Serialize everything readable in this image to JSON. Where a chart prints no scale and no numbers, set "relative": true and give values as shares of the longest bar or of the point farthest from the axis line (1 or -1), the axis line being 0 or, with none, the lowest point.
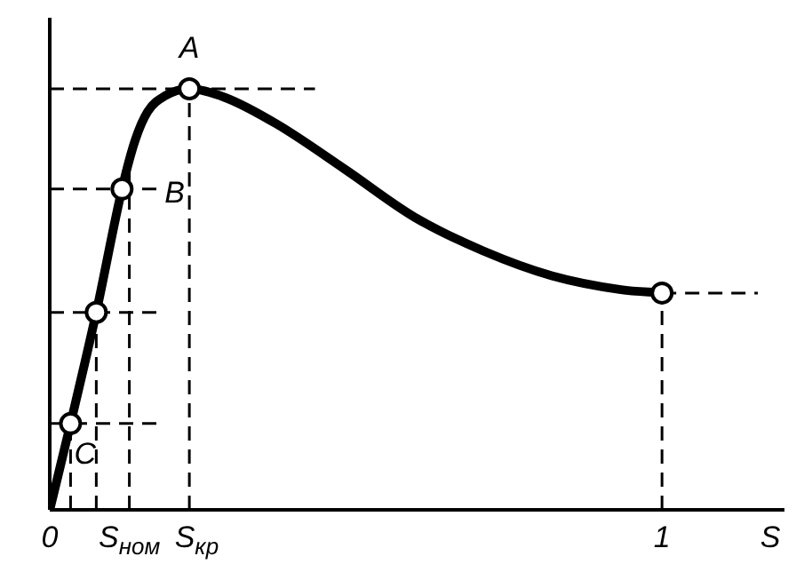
{
  "chart_data": {
    "type": "line",
    "relative": true,
    "xlabel": "S",
    "xlim": [
      0,
      1.2
    ],
    "xticks": [
      {
        "value": 0,
        "label": "0"
      },
      {
        "value": 0.13,
        "label": "S$_{ном}$"
      },
      {
        "value": 0.24,
        "label": "S$_{кр}$"
      },
      1
    ],
    "series": [
      {
        "type": "line",
        "color": "#000000",
        "marker": "none",
        "x": [
          0,
          0.034,
          0.076,
          0.118,
          0.14,
          0.16,
          0.188,
          0.228,
          0.287,
          0.371,
          0.483,
          0.596,
          0.708,
          0.82,
          0.933,
          1
        ],
        "values": [
          0,
          0.205,
          0.469,
          0.762,
          0.88,
          0.946,
          0.983,
          1,
          0.979,
          0.916,
          0.808,
          0.695,
          0.615,
          0.556,
          0.523,
          0.515
        ]
      },
      {
        "type": "scatter",
        "color": "#000000",
        "marker": "circle",
        "x": [
          0.034,
          0.076,
          0.118,
          0.228,
          1
        ],
        "values": [
          0.205,
          0.469,
          0.762,
          1,
          0.515
        ]
      }
    ],
    "ref_lines": [
      {
        "axis": "y",
        "value": 0.205,
        "line_style": "dashed"
      },
      {
        "axis": "y",
        "value": 0.469,
        "line_style": "dashed"
      },
      {
        "axis": "y",
        "value": 0.762,
        "line_style": "dashed"
      },
      {
        "axis": "y",
        "value": 1,
        "line_style": "dashed"
      },
      {
        "axis": "y",
        "value": 0.515,
        "line_style": "dashed"
      },
      {
        "axis": "x",
        "value": 0.034,
        "line_style": "dashed"
      },
      {
        "axis": "x",
        "value": 0.076,
        "line_style": "dashed"
      },
      {
        "axis": "x",
        "value": 0.13,
        "line_style": "dashed"
      },
      {
        "axis": "x",
        "value": 0.228,
        "line_style": "dashed"
      },
      {
        "axis": "x",
        "value": 1,
        "line_style": "dashed"
      }
    ],
    "annotations": [
      {
        "text": "A",
        "x": 0.228,
        "y": 1
      },
      {
        "text": "B",
        "x": 0.118,
        "y": 0.762
      },
      {
        "text": "C",
        "x": 0.034,
        "y": 0.205
      }
    ],
    "grid": false,
    "legend": false
  }
}
